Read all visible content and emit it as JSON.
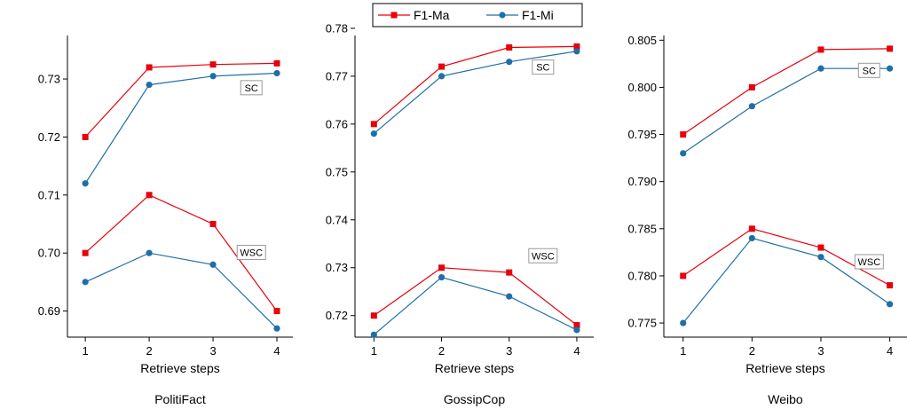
{
  "legend": [
    {
      "name": "F1-Ma",
      "color": "#e8000b",
      "marker": "square"
    },
    {
      "name": "F1-Mi",
      "color": "#1f6fa6",
      "marker": "circle"
    }
  ],
  "chart_data": [
    {
      "type": "line",
      "title": "PolitiFact",
      "xlabel": "Retrieve steps",
      "ylabel": "",
      "x": [
        1,
        2,
        3,
        4
      ],
      "xticks": [
        1,
        2,
        3,
        4
      ],
      "ylim": [
        0.6855,
        0.7375
      ],
      "yticks": [
        0.69,
        0.7,
        0.71,
        0.72,
        0.73
      ],
      "ytick_labels": [
        "0.69",
        "0.70",
        "0.71",
        "0.72",
        "0.73"
      ],
      "annotations": [
        {
          "text": "SC",
          "x": 3.6,
          "y": 0.7285
        },
        {
          "text": "WSC",
          "x": 3.6,
          "y": 0.7001
        }
      ],
      "series": [
        {
          "name": "F1-Ma",
          "group": "SC",
          "color": "#e8000b",
          "marker": "square",
          "values": [
            0.72,
            0.732,
            0.7325,
            0.7327
          ]
        },
        {
          "name": "F1-Mi",
          "group": "SC",
          "color": "#1f6fa6",
          "marker": "circle",
          "values": [
            0.712,
            0.729,
            0.7305,
            0.731
          ]
        },
        {
          "name": "F1-Ma",
          "group": "WSC",
          "color": "#e8000b",
          "marker": "square",
          "values": [
            0.7,
            0.71,
            0.705,
            0.69
          ]
        },
        {
          "name": "F1-Mi",
          "group": "WSC",
          "color": "#1f6fa6",
          "marker": "circle",
          "values": [
            0.695,
            0.7,
            0.698,
            0.687
          ]
        }
      ]
    },
    {
      "type": "line",
      "title": "GossipCop",
      "xlabel": "Retrieve steps",
      "ylabel": "",
      "x": [
        1,
        2,
        3,
        4
      ],
      "xticks": [
        1,
        2,
        3,
        4
      ],
      "ylim": [
        0.7155,
        0.7785
      ],
      "yticks": [
        0.72,
        0.73,
        0.74,
        0.75,
        0.76,
        0.77,
        0.78
      ],
      "ytick_labels": [
        "0.72",
        "0.73",
        "0.74",
        "0.75",
        "0.76",
        "0.77",
        "0.78"
      ],
      "annotations": [
        {
          "text": "SC",
          "x": 3.5,
          "y": 0.7719
        },
        {
          "text": "WSC",
          "x": 3.5,
          "y": 0.7325
        }
      ],
      "series": [
        {
          "name": "F1-Ma",
          "group": "SC",
          "color": "#e8000b",
          "marker": "square",
          "values": [
            0.76,
            0.772,
            0.776,
            0.7762
          ]
        },
        {
          "name": "F1-Mi",
          "group": "SC",
          "color": "#1f6fa6",
          "marker": "circle",
          "values": [
            0.758,
            0.77,
            0.773,
            0.7752
          ]
        },
        {
          "name": "F1-Ma",
          "group": "WSC",
          "color": "#e8000b",
          "marker": "square",
          "values": [
            0.72,
            0.73,
            0.729,
            0.718
          ]
        },
        {
          "name": "F1-Mi",
          "group": "WSC",
          "color": "#1f6fa6",
          "marker": "circle",
          "values": [
            0.716,
            0.728,
            0.724,
            0.717
          ]
        }
      ]
    },
    {
      "type": "line",
      "title": "Weibo",
      "xlabel": "Retrieve steps",
      "ylabel": "",
      "x": [
        1,
        2,
        3,
        4
      ],
      "xticks": [
        1,
        2,
        3,
        4
      ],
      "ylim": [
        0.7735,
        0.8055
      ],
      "yticks": [
        0.775,
        0.78,
        0.785,
        0.79,
        0.795,
        0.8,
        0.805
      ],
      "ytick_labels": [
        "0.775",
        "0.780",
        "0.785",
        "0.790",
        "0.795",
        "0.800",
        "0.805"
      ],
      "annotations": [
        {
          "text": "SC",
          "x": 3.7,
          "y": 0.8018
        },
        {
          "text": "WSC",
          "x": 3.7,
          "y": 0.7815
        }
      ],
      "series": [
        {
          "name": "F1-Ma",
          "group": "SC",
          "color": "#e8000b",
          "marker": "square",
          "values": [
            0.795,
            0.8,
            0.804,
            0.8041
          ]
        },
        {
          "name": "F1-Mi",
          "group": "SC",
          "color": "#1f6fa6",
          "marker": "circle",
          "values": [
            0.793,
            0.798,
            0.802,
            0.802
          ]
        },
        {
          "name": "F1-Ma",
          "group": "WSC",
          "color": "#e8000b",
          "marker": "square",
          "values": [
            0.78,
            0.785,
            0.783,
            0.779
          ]
        },
        {
          "name": "F1-Mi",
          "group": "WSC",
          "color": "#1f6fa6",
          "marker": "circle",
          "values": [
            0.775,
            0.784,
            0.782,
            0.777
          ]
        }
      ]
    }
  ]
}
